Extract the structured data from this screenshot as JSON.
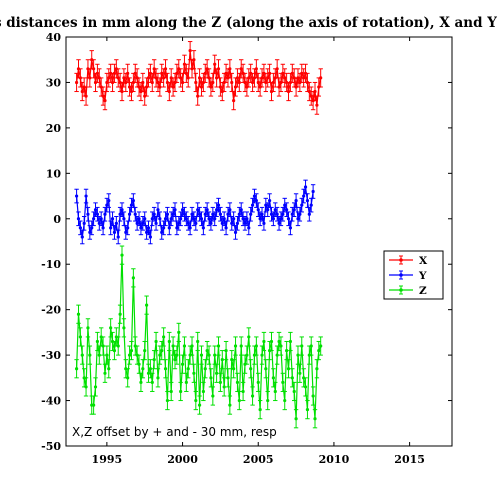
{
  "chart_data": {
    "type": "line",
    "title": "As distances in mm along the Z (along the axis of rotation), X and Y axes",
    "xlabel": "",
    "ylabel": "",
    "xlim": [
      1992.3,
      2017.8
    ],
    "ylim": [
      -50,
      40
    ],
    "xticks": [
      1995,
      2000,
      2005,
      2010,
      2015
    ],
    "yticks": [
      -50,
      -40,
      -30,
      -20,
      -10,
      0,
      10,
      20,
      30,
      40
    ],
    "grid": false,
    "legend_position": "right",
    "annotation": "X,Z offset by + and - 30 mm, resp",
    "x_start": 1993.0,
    "x_step": 0.125,
    "series": [
      {
        "name": "X",
        "color": "#ff0000",
        "error": 2.0,
        "values": [
          30,
          33,
          31,
          28,
          29,
          27,
          33,
          31,
          35,
          33,
          30,
          32,
          31,
          29,
          27,
          26,
          30,
          31,
          32,
          30,
          32,
          33,
          31,
          30,
          28,
          31,
          30,
          32,
          29,
          28,
          30,
          32,
          31,
          29,
          28,
          30,
          27,
          29,
          31,
          32,
          30,
          33,
          31,
          30,
          29,
          32,
          31,
          33,
          30,
          28,
          31,
          29,
          30,
          32,
          33,
          31,
          30,
          34,
          32,
          31,
          37,
          33,
          35,
          30,
          27,
          31,
          29,
          30,
          32,
          33,
          31,
          29,
          30,
          34,
          31,
          33,
          29,
          28,
          30,
          32,
          31,
          33,
          30,
          26,
          29,
          31,
          30,
          33,
          32,
          30,
          29,
          31,
          32,
          30,
          31,
          33,
          30,
          29,
          31,
          32,
          30,
          31,
          32,
          28,
          30,
          31,
          33,
          29,
          30,
          32,
          31,
          30,
          28,
          30,
          32,
          31,
          29,
          31,
          30,
          32,
          31,
          32,
          30,
          28,
          27,
          26,
          28,
          25,
          29,
          31
        ]
      },
      {
        "name": "Y",
        "color": "#0000ff",
        "error": 1.5,
        "values": [
          5,
          0,
          -2,
          -4,
          -1,
          5,
          1,
          -3,
          -2,
          0,
          2,
          1,
          -1,
          0,
          -2,
          1,
          3,
          4,
          -2,
          0,
          -3,
          -1,
          -4,
          1,
          2,
          0,
          -3,
          -2,
          1,
          3,
          4,
          1,
          -1,
          0,
          -2,
          -1,
          0,
          -3,
          -2,
          -4,
          0,
          1,
          -1,
          2,
          0,
          -3,
          -2,
          0,
          1,
          -2,
          0,
          1,
          2,
          -2,
          -1,
          0,
          2,
          1,
          0,
          -1,
          -2,
          1,
          0,
          -1,
          2,
          1,
          0,
          -2,
          1,
          2,
          0,
          -1,
          1,
          0,
          2,
          3,
          1,
          -1,
          0,
          -2,
          1,
          2,
          -1,
          0,
          -3,
          -1,
          1,
          2,
          0,
          -1,
          0,
          -2,
          1,
          3,
          5,
          4,
          2,
          0,
          1,
          -1,
          3,
          2,
          4,
          1,
          0,
          2,
          1,
          -1,
          0,
          1,
          3,
          2,
          0,
          -2,
          1,
          2,
          4,
          0,
          1,
          3,
          5,
          7,
          4,
          1,
          3,
          6
        ]
      },
      {
        "name": "Z",
        "color": "#00e000",
        "error": 2.0,
        "values": [
          -33,
          -21,
          -26,
          -30,
          -35,
          -37,
          -24,
          -30,
          -41,
          -41,
          -37,
          -27,
          -30,
          -26,
          -28,
          -34,
          -30,
          -33,
          -24,
          -27,
          -29,
          -26,
          -28,
          -21,
          -8,
          -24,
          -33,
          -35,
          -30,
          -29,
          -13,
          -28,
          -30,
          -32,
          -36,
          -33,
          -29,
          -19,
          -34,
          -33,
          -36,
          -31,
          -27,
          -35,
          -30,
          -29,
          -26,
          -33,
          -40,
          -27,
          -38,
          -28,
          -31,
          -30,
          -25,
          -38,
          -32,
          -28,
          -36,
          -33,
          -30,
          -28,
          -34,
          -40,
          -27,
          -41,
          -30,
          -38,
          -33,
          -29,
          -30,
          -35,
          -39,
          -30,
          -34,
          -28,
          -36,
          -31,
          -37,
          -29,
          -35,
          -41,
          -31,
          -33,
          -28,
          -36,
          -40,
          -28,
          -38,
          -32,
          -30,
          -26,
          -33,
          -39,
          -30,
          -28,
          -36,
          -42,
          -30,
          -27,
          -33,
          -40,
          -29,
          -27,
          -35,
          -38,
          -30,
          -27,
          -28,
          -36,
          -40,
          -29,
          -33,
          -27,
          -35,
          -38,
          -44,
          -30,
          -34,
          -28,
          -35,
          -37,
          -42,
          -30,
          -28,
          -39,
          -44,
          -33,
          -29,
          -28
        ]
      }
    ]
  }
}
